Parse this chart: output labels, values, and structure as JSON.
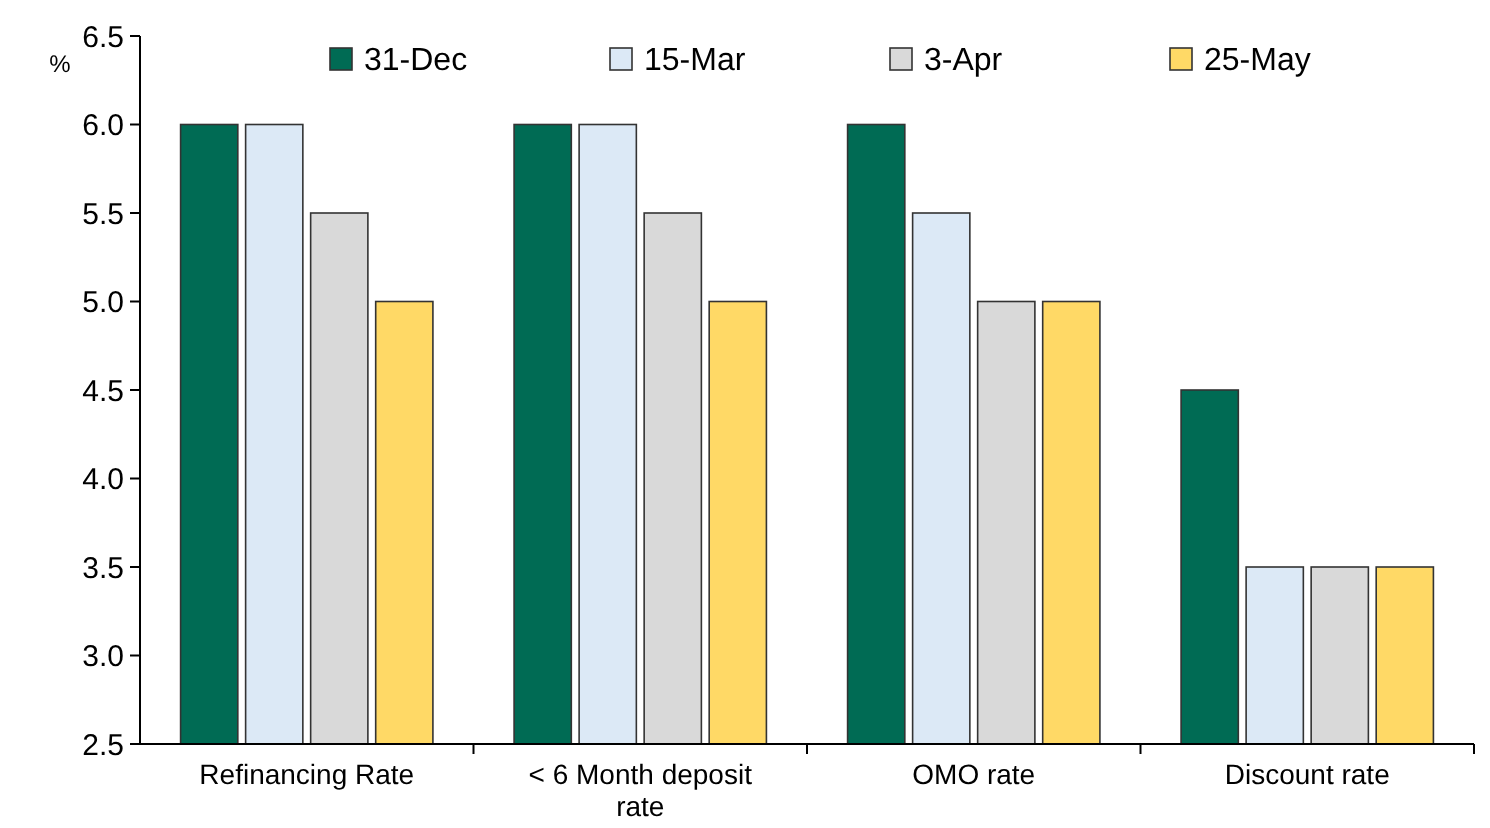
{
  "chart_data": {
    "type": "bar",
    "ylabel": "%",
    "categories": [
      "Refinancing Rate",
      "< 6 Month deposit rate",
      "OMO rate",
      "Discount rate"
    ],
    "series": [
      {
        "name": "31-Dec",
        "color": "#006b54",
        "values": [
          6.0,
          6.0,
          6.0,
          4.5
        ]
      },
      {
        "name": "15-Mar",
        "color": "#dce9f6",
        "values": [
          6.0,
          6.0,
          5.5,
          3.5
        ]
      },
      {
        "name": "3-Apr",
        "color": "#d9d9d9",
        "values": [
          5.5,
          5.5,
          5.0,
          3.5
        ]
      },
      {
        "name": "25-May",
        "color": "#ffd966",
        "values": [
          5.0,
          5.0,
          5.0,
          3.5
        ]
      }
    ],
    "ylim": [
      2.5,
      6.5
    ],
    "yticks": [
      {
        "value": 2.5,
        "label": "2.5"
      },
      {
        "value": 3,
        "label": "3.0"
      },
      {
        "value": 3.5,
        "label": "3.5"
      },
      {
        "value": 4,
        "label": "4.0"
      },
      {
        "value": 4.5,
        "label": "4.5"
      },
      {
        "value": 5,
        "label": "5.0"
      },
      {
        "value": 5.5,
        "label": "5.5"
      },
      {
        "value": 6,
        "label": "6.0"
      },
      {
        "value": 6.5,
        "label": "6.5"
      }
    ],
    "grid": false,
    "legend": "top"
  }
}
